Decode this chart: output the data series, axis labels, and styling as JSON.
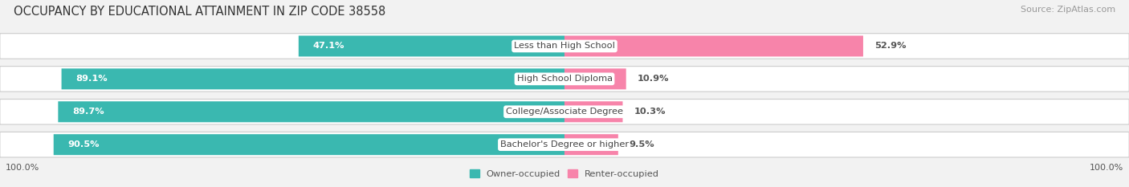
{
  "title": "OCCUPANCY BY EDUCATIONAL ATTAINMENT IN ZIP CODE 38558",
  "source": "Source: ZipAtlas.com",
  "categories": [
    "Less than High School",
    "High School Diploma",
    "College/Associate Degree",
    "Bachelor's Degree or higher"
  ],
  "owner_pct": [
    47.1,
    89.1,
    89.7,
    90.5
  ],
  "renter_pct": [
    52.9,
    10.9,
    10.3,
    9.5
  ],
  "owner_color": "#3ab8b0",
  "renter_color": "#f784aa",
  "bg_color": "#f2f2f2",
  "row_bg_color": "#e8e8e8",
  "title_fontsize": 10.5,
  "label_fontsize": 8.2,
  "pct_fontsize": 8.2,
  "tick_fontsize": 8,
  "source_fontsize": 8,
  "bar_height": 0.62,
  "left_label": "100.0%",
  "right_label": "100.0%"
}
